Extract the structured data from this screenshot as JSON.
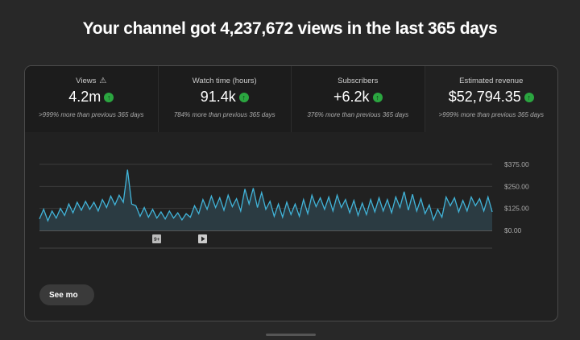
{
  "headline": "Your channel got 4,237,672 views in the last 365 days",
  "metrics": [
    {
      "label": "Views",
      "value": "4.2m",
      "change": ">999% more than previous 365 days",
      "warning_icon": "warning-triangle-icon",
      "trend": "up"
    },
    {
      "label": "Watch time (hours)",
      "value": "91.4k",
      "change": "784% more than previous 365 days",
      "trend": "up"
    },
    {
      "label": "Subscribers",
      "value": "+6.2k",
      "change": "376% more than previous 365 days",
      "trend": "up"
    },
    {
      "label": "Estimated revenue",
      "value": "$52,794.35",
      "change": ">999% more than previous 365 days",
      "trend": "up",
      "selected": true
    }
  ],
  "chart_data": {
    "type": "area",
    "ylim": [
      0,
      375
    ],
    "y_ticks": [
      "$0.00",
      "$125.00",
      "$250.00",
      "$375.00"
    ],
    "grid": true,
    "line_color": "#41b4d9",
    "values": [
      65,
      120,
      55,
      110,
      70,
      125,
      85,
      150,
      100,
      160,
      115,
      165,
      120,
      160,
      110,
      175,
      130,
      195,
      145,
      200,
      160,
      345,
      150,
      140,
      80,
      130,
      75,
      120,
      70,
      105,
      65,
      110,
      70,
      100,
      60,
      95,
      75,
      140,
      95,
      175,
      120,
      195,
      130,
      185,
      115,
      200,
      135,
      180,
      110,
      235,
      150,
      240,
      130,
      215,
      120,
      165,
      80,
      150,
      75,
      160,
      90,
      150,
      80,
      175,
      95,
      200,
      135,
      185,
      120,
      190,
      110,
      200,
      130,
      175,
      100,
      170,
      85,
      155,
      90,
      175,
      105,
      185,
      110,
      175,
      100,
      190,
      130,
      220,
      115,
      205,
      110,
      180,
      95,
      145,
      60,
      120,
      75,
      190,
      140,
      185,
      105,
      170,
      110,
      190,
      140,
      180,
      110,
      190,
      105
    ]
  },
  "annotations": [
    {
      "icon": "video-count-badge",
      "text": "9+"
    },
    {
      "icon": "play-icon"
    }
  ],
  "see_more": "See mo"
}
